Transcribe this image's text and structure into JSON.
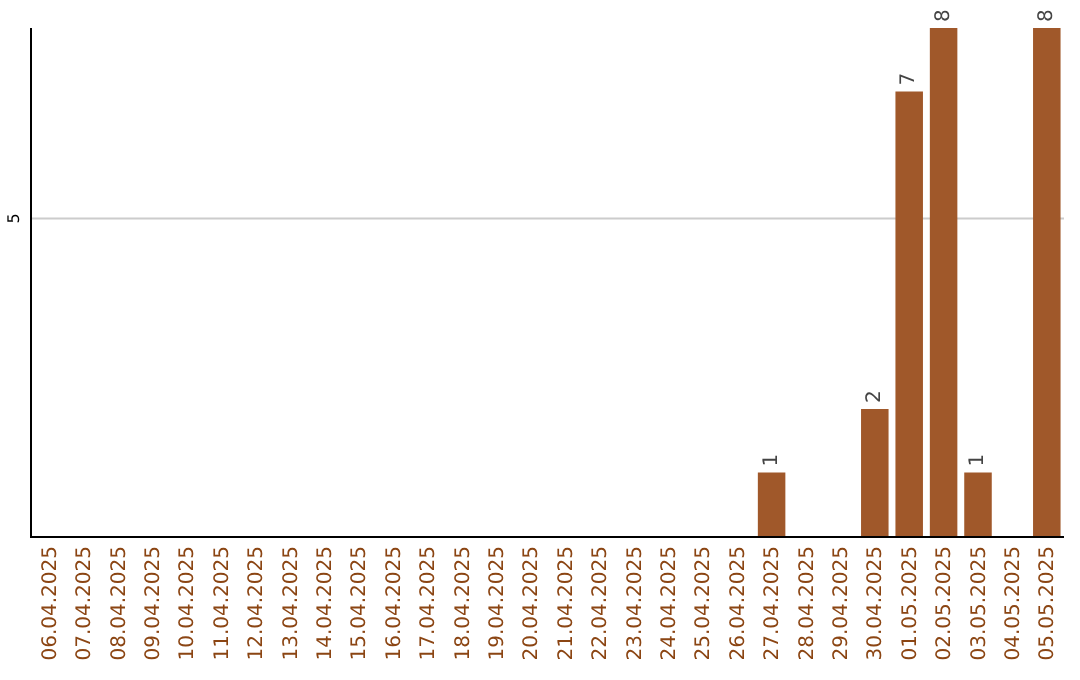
{
  "chart_data": {
    "type": "bar",
    "categories": [
      "06.04.2025",
      "07.04.2025",
      "08.04.2025",
      "09.04.2025",
      "10.04.2025",
      "11.04.2025",
      "12.04.2025",
      "13.04.2025",
      "14.04.2025",
      "15.04.2025",
      "16.04.2025",
      "17.04.2025",
      "18.04.2025",
      "19.04.2025",
      "20.04.2025",
      "21.04.2025",
      "22.04.2025",
      "23.04.2025",
      "24.04.2025",
      "25.04.2025",
      "26.04.2025",
      "27.04.2025",
      "28.04.2025",
      "29.04.2025",
      "30.04.2025",
      "01.05.2025",
      "02.05.2025",
      "03.05.2025",
      "04.05.2025",
      "05.05.2025"
    ],
    "values": [
      null,
      null,
      null,
      null,
      null,
      null,
      null,
      null,
      null,
      null,
      null,
      null,
      null,
      null,
      null,
      null,
      null,
      null,
      null,
      null,
      null,
      1,
      null,
      null,
      2,
      7,
      8,
      1,
      null,
      8
    ],
    "data_labels": true,
    "ref_lines": [
      {
        "axis": "y",
        "value": 5,
        "label": "5",
        "color": "#cccccc"
      }
    ],
    "color": "#a0582a",
    "ylim": [
      0,
      8
    ]
  }
}
